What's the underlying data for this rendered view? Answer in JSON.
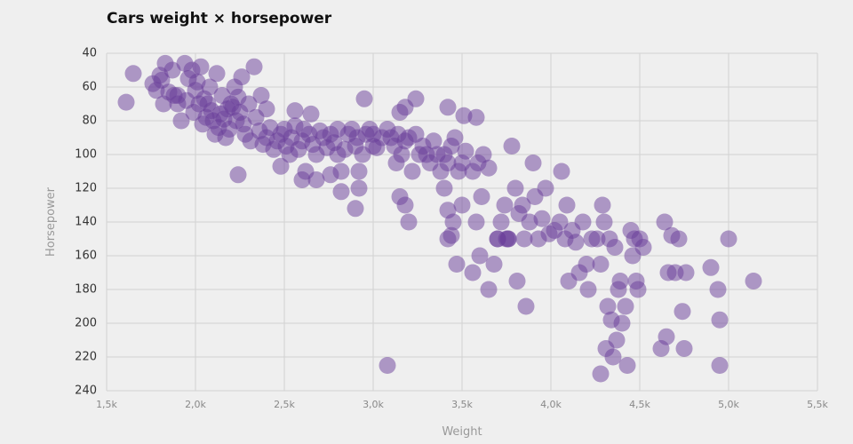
{
  "chart_data": {
    "type": "scatter",
    "title": "Cars weight × horsepower",
    "xlabel": "Weight",
    "ylabel": "Horsepower",
    "xlim": [
      1500,
      5500
    ],
    "ylim": [
      40,
      240
    ],
    "y_reversed": true,
    "x_ticks": [
      1500,
      2000,
      2500,
      3000,
      3500,
      4000,
      4500,
      5000,
      5500
    ],
    "x_tick_labels": [
      "1,5k",
      "2,0k",
      "2,5k",
      "3,0k",
      "3,5k",
      "4,0k",
      "4,5k",
      "5,0k",
      "5,5k"
    ],
    "y_ticks": [
      40,
      60,
      80,
      100,
      120,
      140,
      160,
      180,
      200,
      220,
      240
    ],
    "y_tick_labels": [
      "40",
      "60",
      "80",
      "100",
      "120",
      "140",
      "160",
      "180",
      "200",
      "220",
      "240"
    ],
    "grid": true,
    "point_color": "#6a3d9a",
    "point_opacity": 0.5,
    "points": [
      [
        1610,
        69
      ],
      [
        1650,
        52
      ],
      [
        1760,
        58
      ],
      [
        1780,
        62
      ],
      [
        1800,
        53
      ],
      [
        1810,
        56
      ],
      [
        1830,
        46
      ],
      [
        1850,
        63
      ],
      [
        1870,
        50
      ],
      [
        1900,
        65
      ],
      [
        1940,
        46
      ],
      [
        1960,
        55
      ],
      [
        1980,
        50
      ],
      [
        2000,
        62
      ],
      [
        2010,
        57
      ],
      [
        2030,
        48
      ],
      [
        2050,
        67
      ],
      [
        2070,
        70
      ],
      [
        2080,
        60
      ],
      [
        2120,
        52
      ],
      [
        2150,
        65
      ],
      [
        2180,
        73
      ],
      [
        2200,
        70
      ],
      [
        2220,
        60
      ],
      [
        2240,
        66
      ],
      [
        2260,
        54
      ],
      [
        2300,
        70
      ],
      [
        2330,
        48
      ],
      [
        2370,
        65
      ],
      [
        2400,
        73
      ],
      [
        1820,
        70
      ],
      [
        1880,
        65
      ],
      [
        1900,
        70
      ],
      [
        1920,
        80
      ],
      [
        1950,
        68
      ],
      [
        1990,
        75
      ],
      [
        2020,
        70
      ],
      [
        2040,
        82
      ],
      [
        2060,
        78
      ],
      [
        2090,
        74
      ],
      [
        2100,
        80
      ],
      [
        2110,
        88
      ],
      [
        2130,
        84
      ],
      [
        2140,
        76
      ],
      [
        2160,
        79
      ],
      [
        2170,
        90
      ],
      [
        2190,
        85
      ],
      [
        2210,
        72
      ],
      [
        2230,
        80
      ],
      [
        2250,
        75
      ],
      [
        2270,
        82
      ],
      [
        2280,
        88
      ],
      [
        2310,
        92
      ],
      [
        2340,
        78
      ],
      [
        2360,
        86
      ],
      [
        2380,
        94
      ],
      [
        2400,
        90
      ],
      [
        2420,
        84
      ],
      [
        2440,
        97
      ],
      [
        2460,
        92
      ],
      [
        2480,
        88
      ],
      [
        2500,
        85
      ],
      [
        2510,
        95
      ],
      [
        2530,
        100
      ],
      [
        2540,
        90
      ],
      [
        2560,
        83
      ],
      [
        2580,
        97
      ],
      [
        2600,
        92
      ],
      [
        2610,
        85
      ],
      [
        2620,
        110
      ],
      [
        2640,
        88
      ],
      [
        2660,
        94
      ],
      [
        2680,
        100
      ],
      [
        2700,
        86
      ],
      [
        2720,
        90
      ],
      [
        2740,
        96
      ],
      [
        2760,
        88
      ],
      [
        2780,
        93
      ],
      [
        2800,
        100
      ],
      [
        2820,
        110
      ],
      [
        2840,
        97
      ],
      [
        2860,
        88
      ],
      [
        2880,
        85
      ],
      [
        2900,
        95
      ],
      [
        2910,
        90
      ],
      [
        2920,
        110
      ],
      [
        2940,
        100
      ],
      [
        2960,
        88
      ],
      [
        2980,
        85
      ],
      [
        3000,
        95
      ],
      [
        2560,
        74
      ],
      [
        2650,
        76
      ],
      [
        2800,
        85
      ],
      [
        2950,
        67
      ],
      [
        3150,
        75
      ],
      [
        3180,
        72
      ],
      [
        3240,
        67
      ],
      [
        3420,
        72
      ],
      [
        3510,
        77
      ],
      [
        3580,
        78
      ],
      [
        2240,
        112
      ],
      [
        2480,
        107
      ],
      [
        2600,
        115
      ],
      [
        2680,
        115
      ],
      [
        2760,
        112
      ],
      [
        2820,
        122
      ],
      [
        2900,
        132
      ],
      [
        2920,
        120
      ],
      [
        3080,
        225
      ],
      [
        3130,
        105
      ],
      [
        3000,
        88
      ],
      [
        3020,
        96
      ],
      [
        3050,
        90
      ],
      [
        3080,
        85
      ],
      [
        3100,
        90
      ],
      [
        3120,
        95
      ],
      [
        3140,
        88
      ],
      [
        3160,
        100
      ],
      [
        3180,
        92
      ],
      [
        3200,
        90
      ],
      [
        3220,
        110
      ],
      [
        3240,
        88
      ],
      [
        3260,
        100
      ],
      [
        3280,
        95
      ],
      [
        3300,
        100
      ],
      [
        3320,
        105
      ],
      [
        3340,
        92
      ],
      [
        3360,
        100
      ],
      [
        3380,
        110
      ],
      [
        3400,
        100
      ],
      [
        3420,
        105
      ],
      [
        3440,
        95
      ],
      [
        3460,
        90
      ],
      [
        3480,
        110
      ],
      [
        3500,
        105
      ],
      [
        3520,
        98
      ],
      [
        3560,
        110
      ],
      [
        3590,
        105
      ],
      [
        3620,
        100
      ],
      [
        3650,
        108
      ],
      [
        3150,
        125
      ],
      [
        3180,
        130
      ],
      [
        3200,
        140
      ],
      [
        3400,
        120
      ],
      [
        3420,
        133
      ],
      [
        3450,
        140
      ],
      [
        3420,
        150
      ],
      [
        3440,
        148
      ],
      [
        3470,
        165
      ],
      [
        3500,
        130
      ],
      [
        3560,
        170
      ],
      [
        3580,
        140
      ],
      [
        3600,
        160
      ],
      [
        3610,
        125
      ],
      [
        3650,
        180
      ],
      [
        3680,
        165
      ],
      [
        3700,
        150
      ],
      [
        3720,
        140
      ],
      [
        3740,
        130
      ],
      [
        3760,
        150
      ],
      [
        3780,
        95
      ],
      [
        3800,
        120
      ],
      [
        3810,
        175
      ],
      [
        3820,
        135
      ],
      [
        3840,
        130
      ],
      [
        3860,
        190
      ],
      [
        3880,
        140
      ],
      [
        3900,
        105
      ],
      [
        3910,
        125
      ],
      [
        3930,
        150
      ],
      [
        3950,
        138
      ],
      [
        3970,
        120
      ],
      [
        3990,
        147
      ],
      [
        4020,
        145
      ],
      [
        4050,
        140
      ],
      [
        4060,
        110
      ],
      [
        4080,
        150
      ],
      [
        4090,
        130
      ],
      [
        4100,
        175
      ],
      [
        4120,
        145
      ],
      [
        4140,
        152
      ],
      [
        4160,
        170
      ],
      [
        4180,
        140
      ],
      [
        4200,
        165
      ],
      [
        4210,
        180
      ],
      [
        4230,
        150
      ],
      [
        4260,
        150
      ],
      [
        4280,
        165
      ],
      [
        4290,
        130
      ],
      [
        4300,
        140
      ],
      [
        4310,
        215
      ],
      [
        4320,
        190
      ],
      [
        4330,
        150
      ],
      [
        4340,
        198
      ],
      [
        4350,
        220
      ],
      [
        4360,
        155
      ],
      [
        4370,
        210
      ],
      [
        4380,
        180
      ],
      [
        4390,
        175
      ],
      [
        4400,
        200
      ],
      [
        4420,
        190
      ],
      [
        4430,
        225
      ],
      [
        4450,
        145
      ],
      [
        4460,
        160
      ],
      [
        4470,
        150
      ],
      [
        4480,
        175
      ],
      [
        4490,
        180
      ],
      [
        4500,
        150
      ],
      [
        4520,
        155
      ],
      [
        4280,
        230
      ],
      [
        4620,
        215
      ],
      [
        4640,
        140
      ],
      [
        4650,
        208
      ],
      [
        4660,
        170
      ],
      [
        4680,
        148
      ],
      [
        4700,
        170
      ],
      [
        4720,
        150
      ],
      [
        4740,
        193
      ],
      [
        4760,
        170
      ],
      [
        4750,
        215
      ],
      [
        4900,
        167
      ],
      [
        4940,
        180
      ],
      [
        4950,
        198
      ],
      [
        4950,
        225
      ],
      [
        5000,
        150
      ],
      [
        5140,
        175
      ],
      [
        3700,
        150
      ],
      [
        3750,
        150
      ],
      [
        3760,
        150
      ],
      [
        3850,
        150
      ]
    ]
  }
}
